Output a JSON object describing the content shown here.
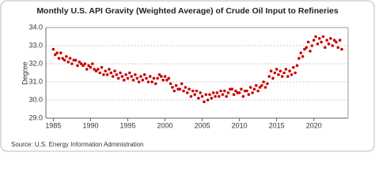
{
  "chart_data": {
    "type": "scatter",
    "title": "Monthly U.S. API Gravity (Weighted Average) of Crude Oil Input to Refineries",
    "y_label": "Degree",
    "source": "Source: U.S. Energy Information Administration",
    "xlim": [
      1984,
      2024.6
    ],
    "ylim": [
      29,
      34
    ],
    "xticks": [
      1985,
      1990,
      1995,
      2000,
      2005,
      2010,
      2015,
      2020
    ],
    "yticks": [
      {
        "value": 29,
        "label": "29.0"
      },
      {
        "value": 30,
        "label": "30.0"
      },
      {
        "value": 31,
        "label": "31.0"
      },
      {
        "value": 32,
        "label": "32.0"
      },
      {
        "value": 33,
        "label": "33.0"
      },
      {
        "value": 34,
        "label": "34.0"
      }
    ],
    "grid": true,
    "series": [
      {
        "color": "#cc0000",
        "x": [
          1985,
          1985.25,
          1985.5,
          1985.75,
          1986,
          1986.25,
          1986.5,
          1986.75,
          1987,
          1987.25,
          1987.5,
          1987.75,
          1988,
          1988.25,
          1988.5,
          1988.75,
          1989,
          1989.25,
          1989.5,
          1989.75,
          1990,
          1990.25,
          1990.5,
          1990.75,
          1991,
          1991.25,
          1991.5,
          1991.75,
          1992,
          1992.25,
          1992.5,
          1992.75,
          1993,
          1993.25,
          1993.5,
          1993.75,
          1994,
          1994.25,
          1994.5,
          1994.75,
          1995,
          1995.25,
          1995.5,
          1995.75,
          1996,
          1996.25,
          1996.5,
          1996.75,
          1997,
          1997.25,
          1997.5,
          1997.75,
          1998,
          1998.25,
          1998.5,
          1998.75,
          1999,
          1999.25,
          1999.5,
          1999.75,
          2000,
          2000.25,
          2000.5,
          2000.75,
          2001,
          2001.25,
          2001.5,
          2001.75,
          2002,
          2002.25,
          2002.5,
          2002.75,
          2003,
          2003.25,
          2003.5,
          2003.75,
          2004,
          2004.25,
          2004.5,
          2004.75,
          2005,
          2005.25,
          2005.5,
          2005.75,
          2006,
          2006.25,
          2006.5,
          2006.75,
          2007,
          2007.25,
          2007.5,
          2007.75,
          2008,
          2008.25,
          2008.5,
          2008.75,
          2009,
          2009.25,
          2009.5,
          2009.75,
          2010,
          2010.25,
          2010.5,
          2010.75,
          2011,
          2011.25,
          2011.5,
          2011.75,
          2012,
          2012.25,
          2012.5,
          2012.75,
          2013,
          2013.25,
          2013.5,
          2013.75,
          2014,
          2014.25,
          2014.5,
          2014.75,
          2015,
          2015.25,
          2015.5,
          2015.75,
          2016,
          2016.25,
          2016.5,
          2016.75,
          2017,
          2017.25,
          2017.5,
          2017.75,
          2018,
          2018.25,
          2018.5,
          2018.75,
          2019,
          2019.25,
          2019.5,
          2019.75,
          2020,
          2020.25,
          2020.5,
          2020.75,
          2021,
          2021.25,
          2021.5,
          2021.75,
          2022,
          2022.25,
          2022.5,
          2022.75,
          2023,
          2023.25,
          2023.5,
          2023.75
        ],
        "values": [
          32.8,
          32.5,
          32.6,
          32.3,
          32.6,
          32.3,
          32.2,
          32.4,
          32.1,
          32.3,
          32.0,
          32.2,
          32.2,
          31.9,
          32.1,
          32.0,
          31.9,
          32.0,
          31.7,
          31.9,
          31.8,
          32.0,
          31.7,
          31.6,
          31.7,
          31.5,
          31.8,
          31.4,
          31.6,
          31.4,
          31.7,
          31.5,
          31.3,
          31.6,
          31.4,
          31.2,
          31.5,
          31.3,
          31.1,
          31.4,
          31.2,
          31.5,
          31.3,
          31.1,
          31.4,
          31.2,
          31.0,
          31.3,
          31.1,
          31.4,
          31.2,
          31.0,
          31.3,
          31.0,
          31.2,
          30.9,
          31.2,
          31.4,
          31.3,
          31.1,
          31.3,
          31.1,
          31.2,
          30.9,
          30.7,
          30.5,
          30.8,
          30.6,
          30.6,
          30.9,
          30.5,
          30.7,
          30.4,
          30.6,
          30.2,
          30.5,
          30.3,
          30.5,
          30.1,
          30.4,
          30.2,
          29.9,
          30.3,
          30.0,
          30.3,
          30.1,
          30.4,
          30.2,
          30.4,
          30.2,
          30.5,
          30.3,
          30.5,
          30.2,
          30.4,
          30.6,
          30.6,
          30.3,
          30.5,
          30.4,
          30.4,
          30.6,
          30.2,
          30.5,
          30.5,
          30.3,
          30.7,
          30.4,
          30.6,
          30.8,
          30.5,
          30.7,
          30.8,
          31.0,
          30.7,
          30.9,
          31.3,
          31.6,
          31.2,
          31.5,
          31.7,
          31.4,
          31.6,
          31.3,
          31.5,
          31.7,
          31.3,
          31.6,
          31.4,
          31.8,
          31.5,
          31.9,
          32.3,
          32.6,
          32.4,
          32.8,
          32.9,
          33.2,
          32.7,
          33.0,
          33.3,
          33.5,
          33.1,
          33.4,
          33.2,
          33.5,
          32.9,
          33.3,
          33.1,
          33.4,
          33.0,
          33.3,
          33.2,
          32.9,
          33.3,
          32.8
        ]
      }
    ]
  }
}
